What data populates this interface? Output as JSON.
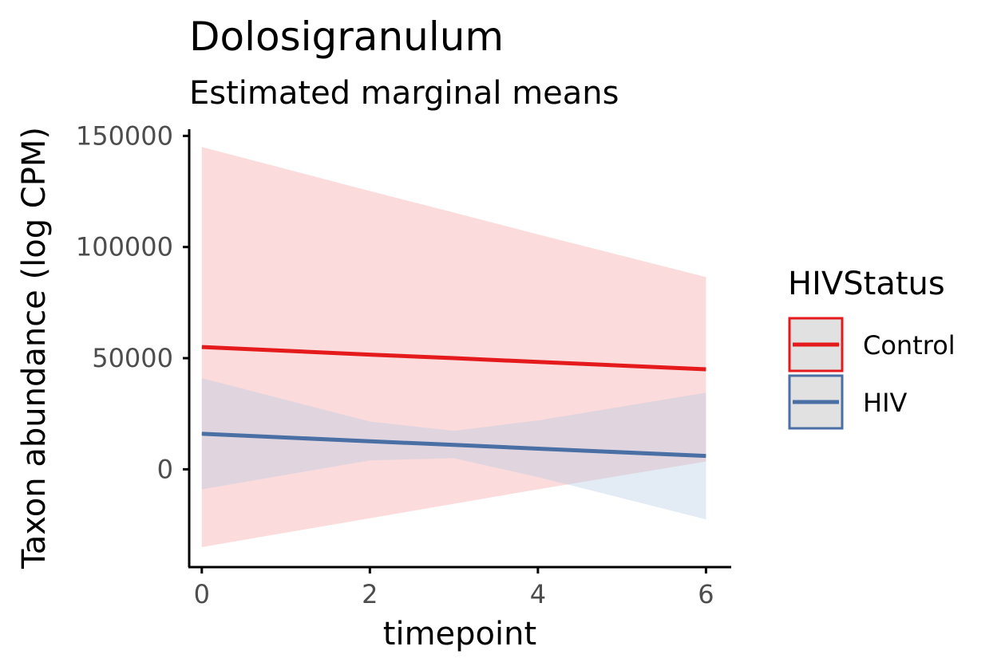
{
  "chart_data": {
    "type": "line",
    "title": "Dolosigranulum",
    "subtitle": "Estimated marginal means",
    "xlabel": "timepoint",
    "ylabel": "Taxon abundance (log CPM)",
    "xlim": [
      -0.15,
      6.3
    ],
    "ylim": [
      -44000,
      153000
    ],
    "x_ticks": [
      0,
      2,
      4,
      6
    ],
    "y_ticks": [
      0,
      50000,
      100000,
      150000
    ],
    "x_tick_labels": [
      "0",
      "2",
      "4",
      "6"
    ],
    "y_tick_labels": [
      "0",
      "50000",
      "100000",
      "150000"
    ],
    "grid": false,
    "legend": {
      "title": "HIVStatus",
      "position": "right"
    },
    "series": [
      {
        "name": "Control",
        "color": "#e41a1c",
        "ribbon_color": "#f4a4a8",
        "x": [
          0,
          2,
          3,
          4,
          6
        ],
        "y": [
          55000,
          51600,
          50000,
          48300,
          45000
        ],
        "lower": [
          -35000,
          -22000,
          -15500,
          -9000,
          3500
        ],
        "upper": [
          145000,
          125200,
          115500,
          105700,
          86500
        ]
      },
      {
        "name": "HIV",
        "color": "#4a6fa5",
        "ribbon_color": "#b8cde4",
        "x": [
          0,
          2,
          3,
          4,
          6
        ],
        "y": [
          16000,
          12600,
          11000,
          9300,
          6000
        ],
        "lower": [
          -9000,
          4000,
          5000,
          -3500,
          -22500
        ],
        "upper": [
          41000,
          21500,
          17300,
          22000,
          34500
        ]
      }
    ]
  }
}
